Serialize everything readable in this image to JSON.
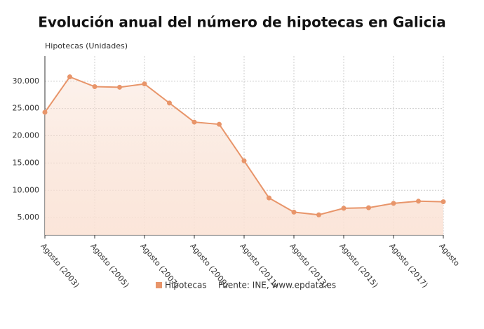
{
  "chart_data": {
    "type": "line",
    "title": "Evolución anual del número de hipotecas en Galicia",
    "y_label": "Hipotecas (Unidades)",
    "source": "Fuente: INE, www.epdata.es",
    "categories": [
      "Agosto (2003)",
      null,
      "Agosto (2005)",
      null,
      "Agosto (2007)",
      null,
      "Agosto (2009)",
      null,
      "Agosto (2011)",
      null,
      "Agosto (2013)",
      null,
      "Agosto (2015)",
      null,
      "Agosto (2017)",
      null,
      "Agosto"
    ],
    "series": [
      {
        "name": "Hipotecas",
        "color": "#e8956a",
        "values": [
          24300,
          30800,
          29000,
          28900,
          29500,
          26000,
          22500,
          22100,
          15400,
          8600,
          6000,
          5500,
          6700,
          6800,
          7600,
          8000,
          7900
        ]
      }
    ],
    "ylim": [
      1800,
      34600
    ],
    "yticks": [
      {
        "value": 5000,
        "label": "5.000"
      },
      {
        "value": 10000,
        "label": "10.000"
      },
      {
        "value": 15000,
        "label": "15.000"
      },
      {
        "value": 20000,
        "label": "20.000"
      },
      {
        "value": 25000,
        "label": "25.000"
      },
      {
        "value": 30000,
        "label": "30.000"
      }
    ],
    "grid": true
  }
}
